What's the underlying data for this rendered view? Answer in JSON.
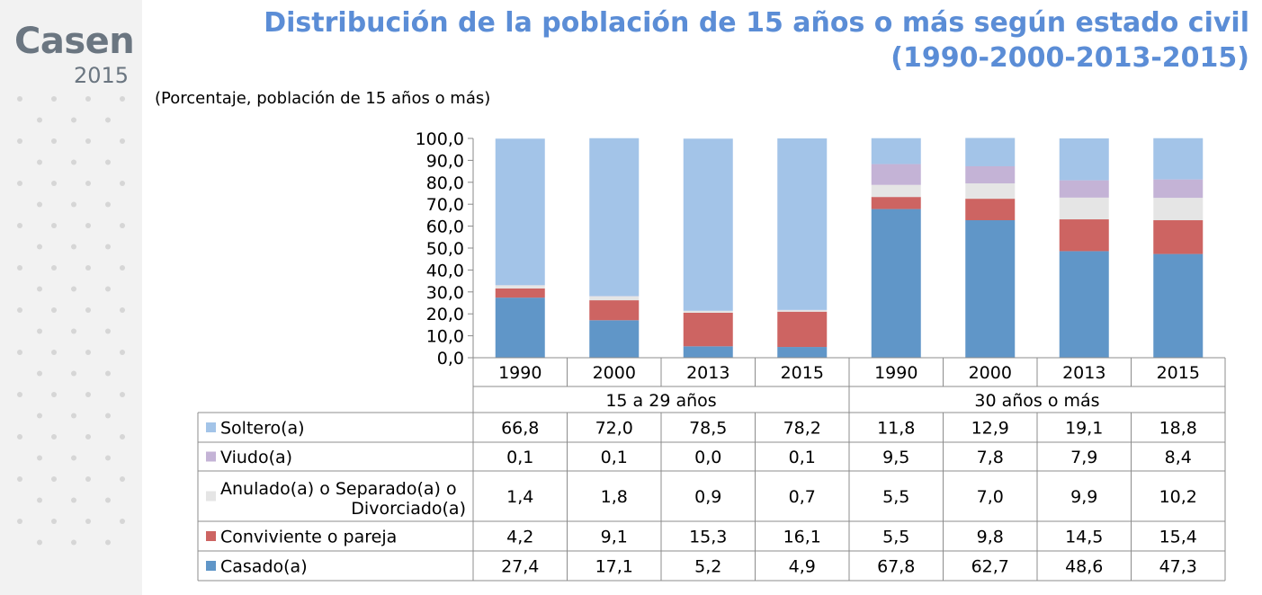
{
  "logo": {
    "name": "Casen",
    "year": "2015"
  },
  "title_line1": "Distribución de la población de 15 años o más según estado civil",
  "title_line2": "(1990-2000-2013-2015)",
  "subtitle": "(Porcentaje, población de 15 años o más)",
  "chart_data": {
    "type": "bar",
    "stacked": true,
    "title": "Distribución de la población de 15 años o más según estado civil (1990-2000-2013-2015)",
    "ylabel": "Porcentaje",
    "ylim": [
      0,
      100
    ],
    "yticks": [
      "0,0",
      "10,0",
      "20,0",
      "30,0",
      "40,0",
      "50,0",
      "60,0",
      "70,0",
      "80,0",
      "90,0",
      "100,0"
    ],
    "groups": [
      {
        "label": "15 a 29 años",
        "span": 4
      },
      {
        "label": "30 años o más",
        "span": 4
      }
    ],
    "categories": [
      "1990",
      "2000",
      "2013",
      "2015",
      "1990",
      "2000",
      "2013",
      "2015"
    ],
    "series": [
      {
        "name": "Casado(a)",
        "color": "#6096c8",
        "values": [
          27.4,
          17.1,
          5.2,
          4.9,
          67.8,
          62.7,
          48.6,
          47.3
        ],
        "labels": [
          "27,4",
          "17,1",
          "5,2",
          "4,9",
          "67,8",
          "62,7",
          "48,6",
          "47,3"
        ]
      },
      {
        "name": "Conviviente o pareja",
        "color": "#cd6462",
        "values": [
          4.2,
          9.1,
          15.3,
          16.1,
          5.5,
          9.8,
          14.5,
          15.4
        ],
        "labels": [
          "4,2",
          "9,1",
          "15,3",
          "16,1",
          "5,5",
          "9,8",
          "14,5",
          "15,4"
        ]
      },
      {
        "name": "Anulado(a) o Separado(a) o Divorciado(a)",
        "color": "#e5e5e5",
        "values": [
          1.4,
          1.8,
          0.9,
          0.7,
          5.5,
          7.0,
          9.9,
          10.2
        ],
        "labels": [
          "1,4",
          "1,8",
          "0,9",
          "0,7",
          "5,5",
          "7,0",
          "9,9",
          "10,2"
        ]
      },
      {
        "name": "Viudo(a)",
        "color": "#c4b3d6",
        "values": [
          0.1,
          0.1,
          0.0,
          0.1,
          9.5,
          7.8,
          7.9,
          8.4
        ],
        "labels": [
          "0,1",
          "0,1",
          "0,0",
          "0,1",
          "9,5",
          "7,8",
          "7,9",
          "8,4"
        ]
      },
      {
        "name": "Soltero(a)",
        "color": "#a3c4e8",
        "values": [
          66.8,
          72.0,
          78.5,
          78.2,
          11.8,
          12.9,
          19.1,
          18.8
        ],
        "labels": [
          "66,8",
          "72,0",
          "78,5",
          "78,2",
          "11,8",
          "12,9",
          "19,1",
          "18,8"
        ]
      }
    ],
    "table_order": [
      "Soltero(a)",
      "Viudo(a)",
      "Anulado(a) o Separado(a) o Divorciado(a)",
      "Conviviente o pareja",
      "Casado(a)"
    ]
  }
}
